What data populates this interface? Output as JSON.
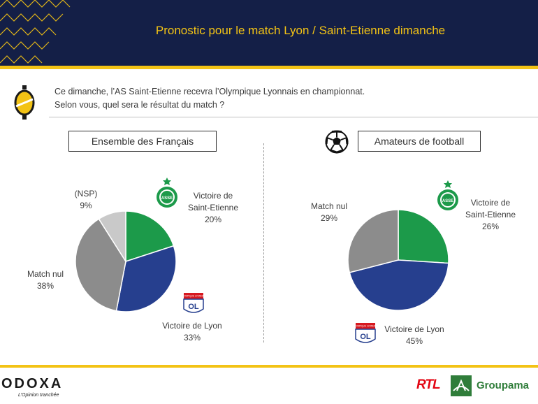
{
  "header": {
    "title": "Pronostic pour le match Lyon / Saint-Etienne dimanche"
  },
  "question": {
    "line1": "Ce dimanche, l’AS Saint-Etienne recevra l’Olympique Lyonnais en championnat.",
    "line2": "Selon vous, quel sera le résultat du match ?"
  },
  "colors": {
    "header_bg": "#141f47",
    "accent": "#f3c315",
    "saint_etienne": "#1c9a4a",
    "lyon": "#263f8e",
    "match_nul": "#8c8c8c",
    "nsp": "#c9c9c9"
  },
  "chart_data": [
    {
      "type": "pie",
      "title": "Ensemble des Français",
      "slices": [
        {
          "label": "Victoire de Saint-Etienne",
          "value": 20,
          "value_text": "20%",
          "color": "#1c9a4a"
        },
        {
          "label": "Victoire de Lyon",
          "value": 33,
          "value_text": "33%",
          "color": "#263f8e"
        },
        {
          "label": "Match nul",
          "value": 38,
          "value_text": "38%",
          "color": "#8c8c8c"
        },
        {
          "label": "(NSP)",
          "value": 9,
          "value_text": "9%",
          "color": "#c9c9c9"
        }
      ]
    },
    {
      "type": "pie",
      "title": "Amateurs de football",
      "slices": [
        {
          "label": "Victoire de Saint-Etienne",
          "value": 26,
          "value_text": "26%",
          "color": "#1c9a4a"
        },
        {
          "label": "Victoire de Lyon",
          "value": 45,
          "value_text": "45%",
          "color": "#263f8e"
        },
        {
          "label": "Match nul",
          "value": 29,
          "value_text": "29%",
          "color": "#8c8c8c"
        }
      ]
    }
  ],
  "labels": {
    "se_line1": "Victoire de",
    "se_line2": "Saint-Etienne",
    "lyon": "Victoire de Lyon",
    "nul": "Match nul",
    "nsp": "(NSP)"
  },
  "crests": {
    "asse": "ASSE",
    "ol": "OLYMPIQUE LYONNAIS"
  },
  "footer": {
    "odoxa": "ODOXA",
    "odoxa_tagline": "L’Opinion tranchée",
    "rtl": "RTL",
    "groupama": "Groupama"
  }
}
